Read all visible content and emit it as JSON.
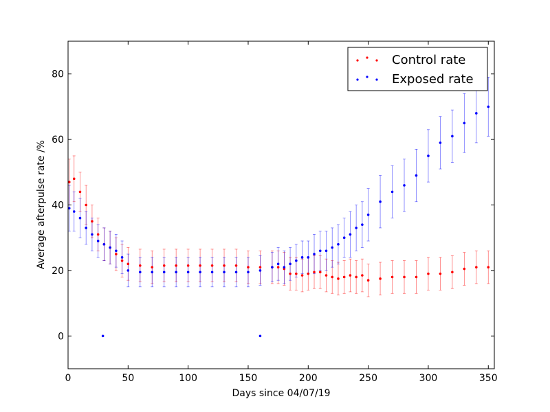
{
  "chart_data": {
    "type": "scatter",
    "title": "",
    "xlabel": "Days since 04/07/19",
    "ylabel": "Average afterpulse rate /%",
    "xlim": [
      0,
      355
    ],
    "ylim": [
      -10,
      90
    ],
    "xticks": [
      0,
      50,
      100,
      150,
      200,
      250,
      300,
      350
    ],
    "yticks": [
      0,
      20,
      40,
      60,
      80
    ],
    "grid": false,
    "legend_position": "top-right",
    "error_bars": true,
    "series": [
      {
        "name": "Control rate",
        "color": "#ff0000",
        "x": [
          1,
          5,
          10,
          15,
          20,
          25,
          30,
          35,
          40,
          45,
          50,
          60,
          70,
          80,
          90,
          100,
          110,
          120,
          130,
          140,
          150,
          160,
          170,
          175,
          180,
          185,
          190,
          195,
          200,
          205,
          210,
          215,
          220,
          225,
          230,
          235,
          240,
          245,
          250,
          260,
          270,
          280,
          290,
          300,
          310,
          320,
          330,
          340,
          350
        ],
        "y": [
          47,
          48,
          44,
          40,
          35,
          31,
          28,
          27,
          25,
          23,
          22,
          21.5,
          21,
          21.5,
          21.5,
          21.5,
          21.5,
          21.5,
          21.5,
          21.5,
          21,
          21,
          21,
          21,
          20.5,
          19,
          19,
          18.5,
          19,
          19.5,
          19.5,
          18.5,
          18,
          17.5,
          18,
          18.5,
          18,
          18.5,
          17,
          17.5,
          18,
          18,
          18,
          19,
          19,
          19.5,
          20.5,
          21,
          21
        ],
        "err": [
          7,
          7,
          6,
          6,
          5,
          5,
          5,
          5,
          5,
          5,
          5,
          5,
          5,
          5,
          5,
          5,
          5,
          5,
          5,
          5,
          5,
          5,
          5,
          5,
          5,
          5,
          5,
          5,
          5,
          5,
          5,
          5,
          5,
          5,
          5,
          5,
          5,
          5,
          5,
          5,
          5,
          5,
          5,
          5,
          5,
          5,
          5,
          5,
          5
        ]
      },
      {
        "name": "Exposed rate",
        "color": "#0000ff",
        "x": [
          1,
          5,
          10,
          15,
          20,
          25,
          30,
          35,
          40,
          45,
          50,
          60,
          70,
          80,
          90,
          100,
          110,
          120,
          130,
          140,
          150,
          160,
          170,
          175,
          180,
          185,
          190,
          195,
          200,
          205,
          210,
          215,
          220,
          225,
          230,
          235,
          240,
          245,
          250,
          260,
          270,
          280,
          290,
          300,
          310,
          320,
          330,
          340,
          350
        ],
        "y": [
          39,
          38,
          36,
          33,
          31,
          29,
          28,
          27,
          26,
          24,
          20,
          19.5,
          19.5,
          19.5,
          19.5,
          19.5,
          19.5,
          19.5,
          19.5,
          19.5,
          19.5,
          20,
          21,
          22,
          21,
          22,
          23,
          24,
          24,
          25,
          26,
          26,
          27,
          28,
          30,
          31,
          33,
          34,
          37,
          41,
          44,
          46,
          49,
          55,
          59,
          61,
          65,
          68,
          70
        ],
        "err": [
          7,
          6,
          6,
          5,
          5,
          5,
          5,
          5,
          5,
          5,
          5,
          4.5,
          4.5,
          4.5,
          4.5,
          4.5,
          4.5,
          4.5,
          4.5,
          4.5,
          4.5,
          4.5,
          4.5,
          5,
          5,
          5,
          5,
          5,
          5,
          6,
          6,
          6,
          6,
          6,
          6,
          7,
          7,
          7,
          8,
          8,
          8,
          8,
          8,
          8,
          8,
          8,
          9,
          9,
          9
        ]
      }
    ],
    "outliers": [
      {
        "x": 29,
        "y": 0,
        "color": "#0000ff"
      },
      {
        "x": 160,
        "y": 0,
        "color": "#0000ff"
      }
    ]
  }
}
